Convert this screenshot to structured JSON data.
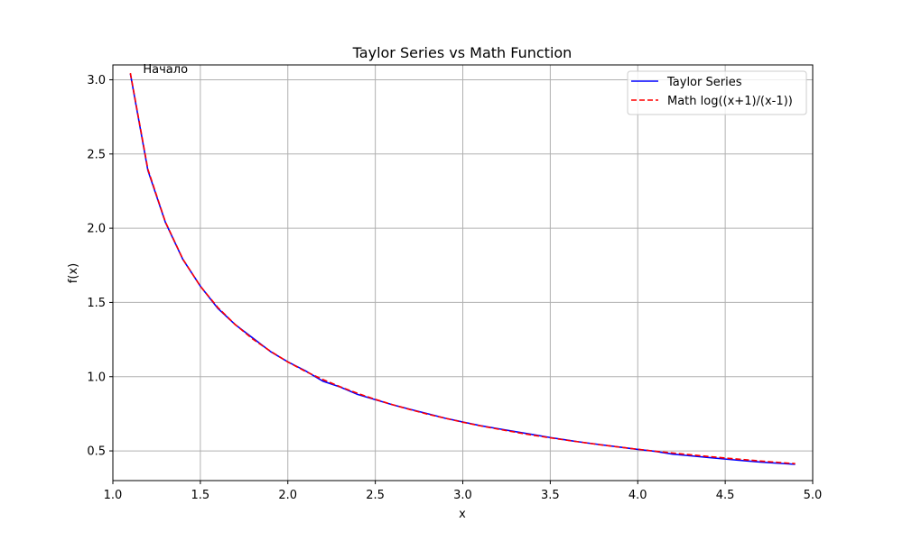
{
  "chart_data": {
    "type": "line",
    "title": "Taylor Series vs Math Function",
    "xlabel": "x",
    "ylabel": "f(x)",
    "xlim": [
      1.0,
      5.0
    ],
    "ylim": [
      0.3,
      3.1
    ],
    "xticks": [
      1.0,
      1.5,
      2.0,
      2.5,
      3.0,
      3.5,
      4.0,
      4.5,
      5.0
    ],
    "xtick_labels": [
      "1.0",
      "1.5",
      "2.0",
      "2.5",
      "3.0",
      "3.5",
      "4.0",
      "4.5",
      "5.0"
    ],
    "yticks": [
      0.5,
      1.0,
      1.5,
      2.0,
      2.5,
      3.0
    ],
    "ytick_labels": [
      "0.5",
      "1.0",
      "1.5",
      "2.0",
      "2.5",
      "3.0"
    ],
    "grid": true,
    "legend_position": "top-right",
    "x": [
      1.1,
      1.2,
      1.3,
      1.4,
      1.5,
      1.6,
      1.7,
      1.8,
      1.9,
      2.0,
      2.1,
      2.2,
      2.3,
      2.4,
      2.5,
      2.6,
      2.7,
      2.8,
      2.9,
      3.0,
      3.1,
      3.2,
      3.3,
      3.4,
      3.5,
      3.6,
      3.7,
      3.8,
      3.9,
      4.0,
      4.1,
      4.2,
      4.3,
      4.4,
      4.5,
      4.6,
      4.7,
      4.8,
      4.9
    ],
    "series": [
      {
        "name": "Taylor Series",
        "color": "#0000ff",
        "style": "solid",
        "values": [
          3.04,
          2.39,
          2.04,
          1.79,
          1.61,
          1.46,
          1.35,
          1.26,
          1.17,
          1.1,
          1.04,
          0.97,
          0.93,
          0.88,
          0.845,
          0.81,
          0.78,
          0.75,
          0.72,
          0.695,
          0.67,
          0.65,
          0.63,
          0.61,
          0.59,
          0.572,
          0.555,
          0.54,
          0.525,
          0.51,
          0.497,
          0.478,
          0.467,
          0.456,
          0.445,
          0.435,
          0.425,
          0.417,
          0.41
        ]
      },
      {
        "name": "Math log((x+1)/(x-1))",
        "color": "#ff0000",
        "style": "dashed",
        "values": [
          3.045,
          2.398,
          2.043,
          1.792,
          1.609,
          1.466,
          1.35,
          1.253,
          1.172,
          1.099,
          1.036,
          0.981,
          0.932,
          0.887,
          0.847,
          0.811,
          0.778,
          0.747,
          0.72,
          0.693,
          0.669,
          0.647,
          0.626,
          0.606,
          0.588,
          0.571,
          0.555,
          0.539,
          0.525,
          0.511,
          0.498,
          0.486,
          0.474,
          0.463,
          0.452,
          0.442,
          0.432,
          0.423,
          0.414
        ]
      }
    ],
    "annotations": [
      {
        "text": "Начало",
        "x": 1.1,
        "y": 3.04
      }
    ]
  }
}
